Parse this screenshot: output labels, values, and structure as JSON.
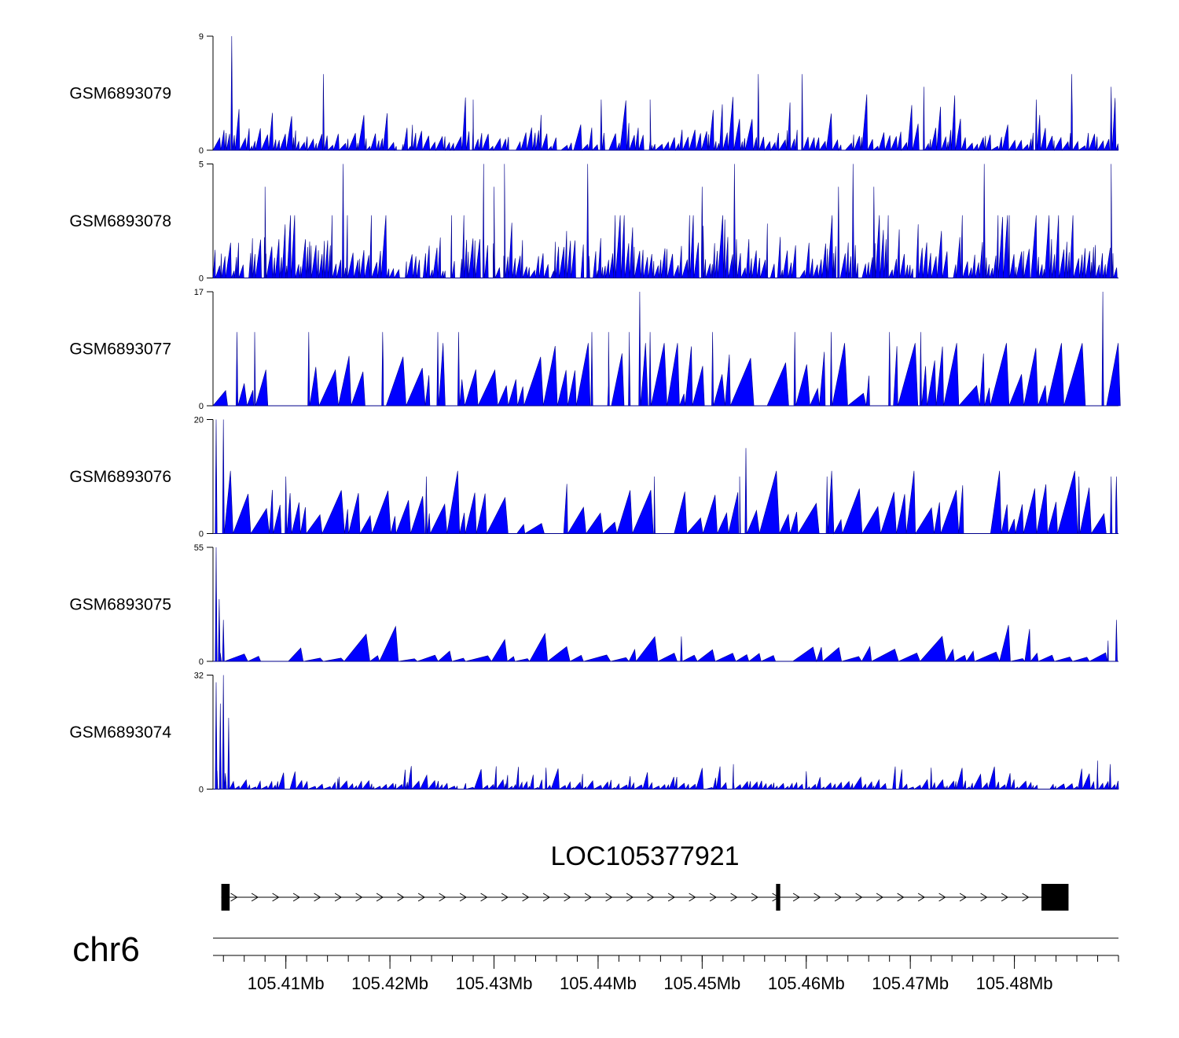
{
  "chart_data": {
    "type": "area",
    "title": "",
    "chromosome": "chr6",
    "x_unit": "Mb",
    "xlim": [
      105.403,
      105.49
    ],
    "x_ticks": [
      105.41,
      105.42,
      105.43,
      105.44,
      105.45,
      105.46,
      105.47,
      105.48
    ],
    "x_tick_labels": [
      "105.41Mb",
      "105.42Mb",
      "105.43Mb",
      "105.44Mb",
      "105.45Mb",
      "105.46Mb",
      "105.47Mb",
      "105.48Mb"
    ],
    "fill_color": "#0000ff",
    "tracks": [
      {
        "name": "GSM6893079",
        "ymax": 9,
        "ymin": 0,
        "ymax_label": "9",
        "ymin_label": "0",
        "baseline": 1,
        "spacing": 0.00045,
        "peaks": [
          [
            105.4048,
            9
          ],
          [
            105.4136,
            6
          ],
          [
            105.428,
            4
          ],
          [
            105.4403,
            4
          ],
          [
            105.445,
            4
          ],
          [
            105.4554,
            6
          ],
          [
            105.4596,
            6
          ],
          [
            105.4713,
            5
          ],
          [
            105.4821,
            4
          ],
          [
            105.4855,
            6
          ],
          [
            105.4893,
            5
          ]
        ]
      },
      {
        "name": "GSM6893078",
        "ymax": 5,
        "ymin": 0,
        "ymax_label": "5",
        "ymin_label": "0",
        "baseline": 1,
        "spacing": 0.00035,
        "peaks": [
          [
            105.408,
            4
          ],
          [
            105.4155,
            5
          ],
          [
            105.429,
            5
          ],
          [
            105.43,
            4
          ],
          [
            105.431,
            5
          ],
          [
            105.439,
            5
          ],
          [
            105.45,
            4
          ],
          [
            105.4531,
            5
          ],
          [
            105.4631,
            4
          ],
          [
            105.4645,
            5
          ],
          [
            105.4665,
            4
          ],
          [
            105.4771,
            5
          ],
          [
            105.4893,
            5
          ]
        ]
      },
      {
        "name": "GSM6893077",
        "ymax": 17,
        "ymin": 0,
        "ymax_label": "17",
        "ymin_label": "0",
        "baseline": 5,
        "spacing": 0.0013,
        "peaks": [
          [
            105.4053,
            11
          ],
          [
            105.407,
            11
          ],
          [
            105.4122,
            11
          ],
          [
            105.4193,
            11
          ],
          [
            105.4246,
            11
          ],
          [
            105.4266,
            11
          ],
          [
            105.4394,
            11
          ],
          [
            105.441,
            11
          ],
          [
            105.443,
            11
          ],
          [
            105.444,
            17
          ],
          [
            105.445,
            11
          ],
          [
            105.451,
            11
          ],
          [
            105.4589,
            11
          ],
          [
            105.4624,
            11
          ],
          [
            105.468,
            11
          ],
          [
            105.471,
            11
          ],
          [
            105.4885,
            17
          ]
        ]
      },
      {
        "name": "GSM6893076",
        "ymax": 20,
        "ymin": 0,
        "ymax_label": "20",
        "ymin_label": "0",
        "baseline": 5,
        "spacing": 0.0013,
        "peaks": [
          [
            105.4033,
            20
          ],
          [
            105.404,
            20
          ],
          [
            105.41,
            10
          ],
          [
            105.4235,
            10
          ],
          [
            105.4454,
            10
          ],
          [
            105.4536,
            10
          ],
          [
            105.4542,
            15
          ],
          [
            105.462,
            10
          ],
          [
            105.4862,
            10
          ],
          [
            105.4893,
            10
          ],
          [
            105.4898,
            10
          ]
        ]
      },
      {
        "name": "GSM6893075",
        "ymax": 55,
        "ymin": 0,
        "ymax_label": "55",
        "ymin_label": "0",
        "baseline": 4,
        "spacing": 0.0016,
        "peaks": [
          [
            105.4033,
            55
          ],
          [
            105.4036,
            30
          ],
          [
            105.404,
            20
          ],
          [
            105.448,
            12
          ],
          [
            105.489,
            10
          ],
          [
            105.4898,
            20
          ]
        ]
      },
      {
        "name": "GSM6893074",
        "ymax": 32,
        "ymin": 0,
        "ymax_label": "32",
        "ymin_label": "0",
        "baseline": 1.5,
        "spacing": 0.0005,
        "peaks": [
          [
            105.4033,
            30
          ],
          [
            105.4037,
            24
          ],
          [
            105.404,
            32
          ],
          [
            105.4045,
            20
          ],
          [
            105.415,
            3
          ],
          [
            105.435,
            6
          ],
          [
            105.453,
            7
          ],
          [
            105.46,
            5
          ],
          [
            105.472,
            6
          ],
          [
            105.488,
            8
          ],
          [
            105.4892,
            7
          ]
        ]
      }
    ],
    "gene": {
      "name": "LOC105377921",
      "strand": "+",
      "start": 105.4038,
      "end": 105.4852,
      "exons": [
        [
          105.4038,
          105.4046
        ],
        [
          105.4571,
          105.4575
        ],
        [
          105.4826,
          105.4852
        ]
      ]
    }
  }
}
